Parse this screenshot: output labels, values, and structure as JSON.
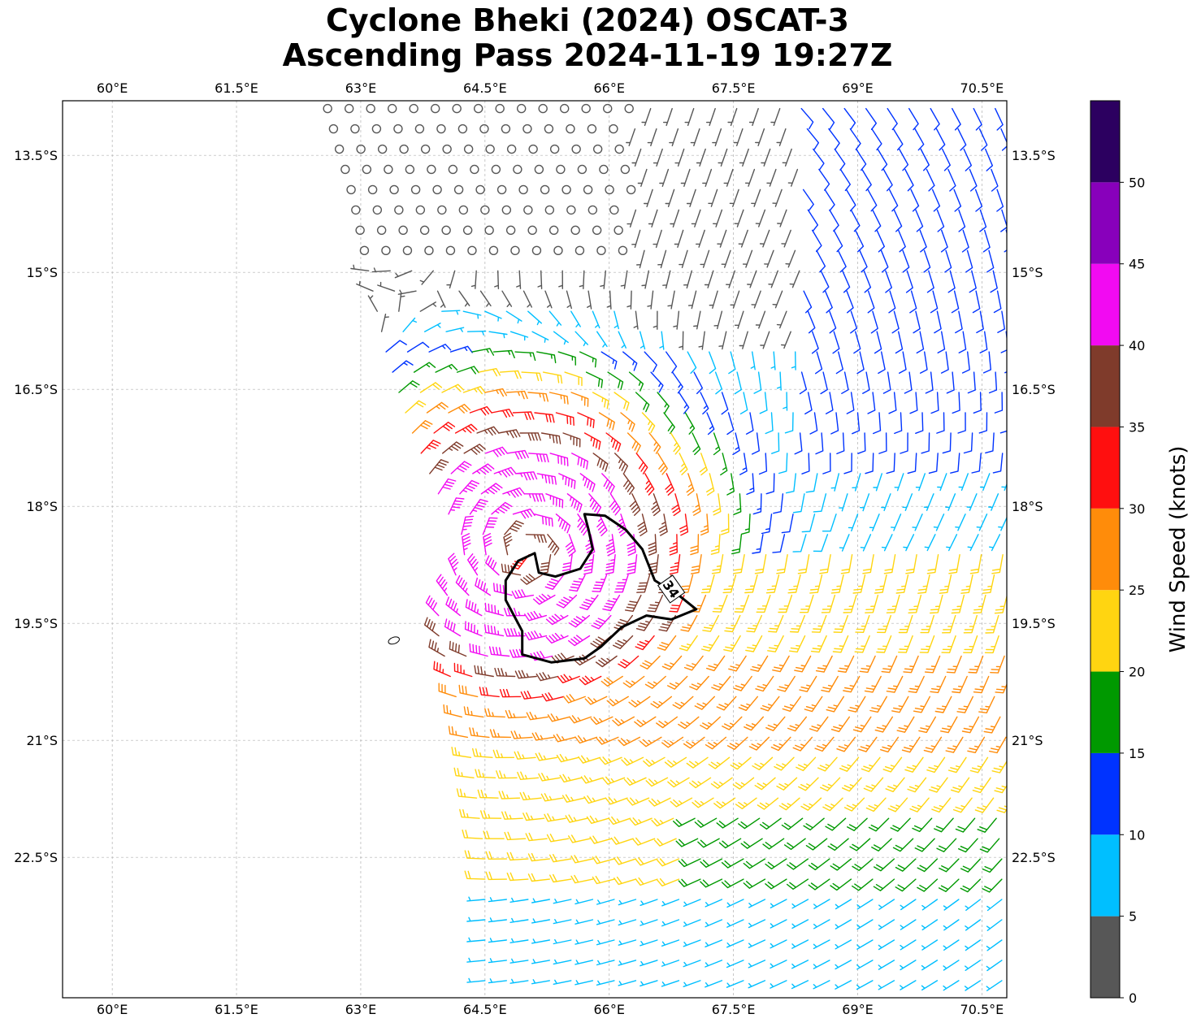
{
  "title": {
    "line1": "Cyclone Bheki (2024) OSCAT-3",
    "line2": "Ascending Pass 2024-11-19 19:27Z"
  },
  "map": {
    "lon_range": [
      59.4,
      70.8
    ],
    "lat_range": [
      -24.3,
      -12.8
    ],
    "lon_ticks": [
      60,
      61.5,
      63,
      64.5,
      66,
      67.5,
      69,
      70.5
    ],
    "lat_ticks": [
      -13.5,
      -15,
      -16.5,
      -18,
      -19.5,
      -21,
      -22.5
    ],
    "lon_tick_labels": [
      "60°E",
      "61.5°E",
      "63°E",
      "64.5°E",
      "66°E",
      "67.5°E",
      "69°E",
      "70.5°E"
    ],
    "lat_tick_labels": [
      "13.5°S",
      "15°S",
      "16.5°S",
      "18°S",
      "19.5°S",
      "21°S",
      "22.5°S"
    ],
    "gridlines": true,
    "swath_west_edge": [
      [
        -12.9,
        62.6
      ],
      [
        -14.0,
        62.9
      ],
      [
        -15.0,
        63.1
      ],
      [
        -16.0,
        63.3
      ],
      [
        -17.0,
        63.6
      ],
      [
        -18.0,
        64.0
      ],
      [
        -18.5,
        64.3
      ],
      [
        -19.5,
        63.9
      ],
      [
        -21.0,
        64.3
      ],
      [
        -22.5,
        64.5
      ],
      [
        -24.3,
        64.5
      ]
    ],
    "storm_center": [
      -18.6,
      65.0
    ],
    "contour_34kt": {
      "label": "34",
      "label_at": [
        -19.06,
        66.75
      ],
      "points": [
        [
          -18.1,
          65.7
        ],
        [
          -18.12,
          65.95
        ],
        [
          -18.3,
          66.2
        ],
        [
          -18.55,
          66.4
        ],
        [
          -18.95,
          66.55
        ],
        [
          -19.15,
          66.85
        ],
        [
          -19.32,
          67.05
        ],
        [
          -19.45,
          66.75
        ],
        [
          -19.4,
          66.45
        ],
        [
          -19.55,
          66.15
        ],
        [
          -19.8,
          65.9
        ],
        [
          -19.95,
          65.7
        ],
        [
          -20.0,
          65.3
        ],
        [
          -19.9,
          64.95
        ],
        [
          -19.6,
          64.95
        ],
        [
          -19.2,
          64.75
        ],
        [
          -18.95,
          64.75
        ],
        [
          -18.7,
          64.9
        ],
        [
          -18.6,
          65.1
        ],
        [
          -18.85,
          65.15
        ],
        [
          -18.9,
          65.35
        ],
        [
          -18.8,
          65.65
        ],
        [
          -18.55,
          65.8
        ],
        [
          -18.3,
          65.75
        ]
      ]
    },
    "small_island": [
      -19.72,
      63.4
    ]
  },
  "colorbar": {
    "label": "Wind Speed (knots)",
    "ticks": [
      0,
      5,
      10,
      15,
      20,
      25,
      30,
      35,
      40,
      45,
      50
    ],
    "bins": [
      {
        "min": 0,
        "max": 5,
        "color": "#575757"
      },
      {
        "min": 5,
        "max": 10,
        "color": "#00bfff"
      },
      {
        "min": 10,
        "max": 15,
        "color": "#0033ff"
      },
      {
        "min": 15,
        "max": 20,
        "color": "#009900"
      },
      {
        "min": 20,
        "max": 25,
        "color": "#ffd511"
      },
      {
        "min": 25,
        "max": 30,
        "color": "#ff8c0a"
      },
      {
        "min": 30,
        "max": 35,
        "color": "#ff0f0f"
      },
      {
        "min": 35,
        "max": 40,
        "color": "#7f3b2b"
      },
      {
        "min": 40,
        "max": 45,
        "color": "#f20af2"
      },
      {
        "min": 45,
        "max": 50,
        "color": "#8800bb"
      },
      {
        "min": 50,
        "max": 55,
        "color": "#2c0060"
      }
    ]
  }
}
